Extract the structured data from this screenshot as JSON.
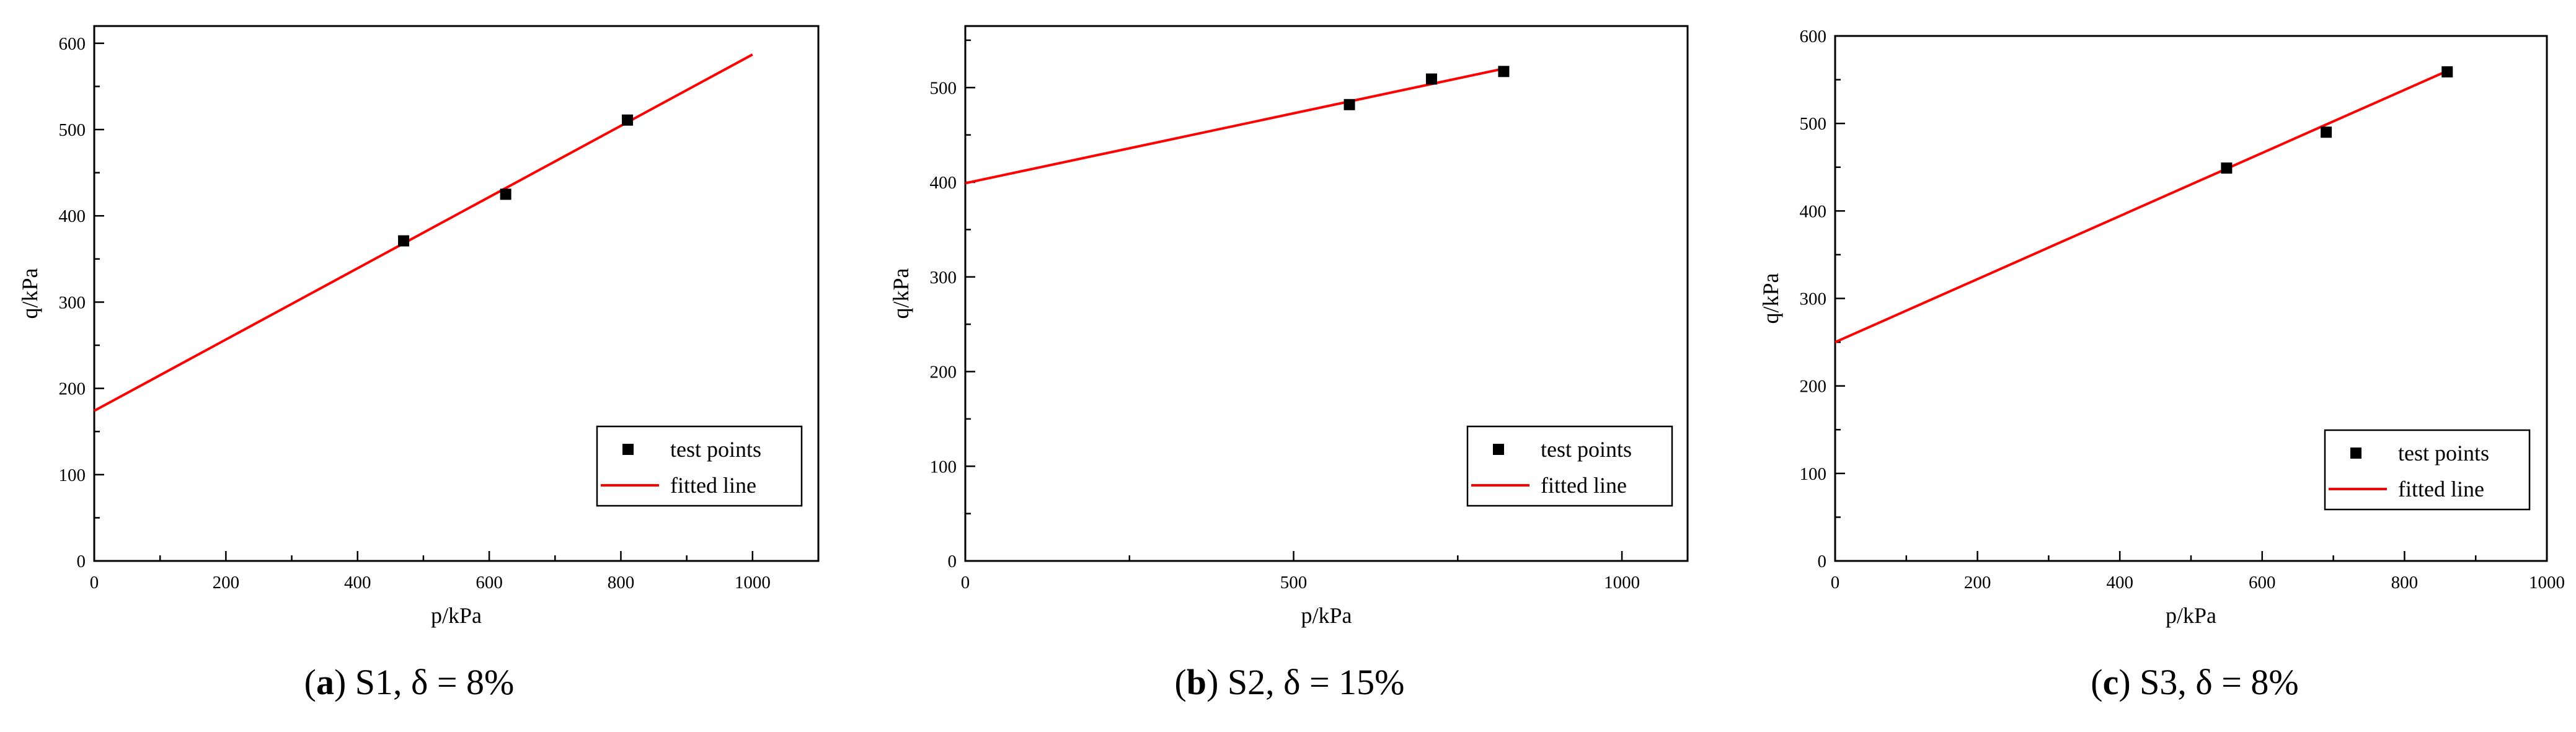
{
  "chart_data": [
    {
      "type": "scatter",
      "xlabel": "p/kPa",
      "ylabel": "q/kPa",
      "xlim": [
        0,
        1100
      ],
      "ylim": [
        0,
        620
      ],
      "xticks": [
        0,
        200,
        400,
        600,
        800,
        1000
      ],
      "yticks": [
        0,
        100,
        200,
        300,
        400,
        500,
        600
      ],
      "grid": false,
      "legend_position": "bottom-right",
      "series": [
        {
          "name": "test points",
          "kind": "scatter",
          "color": "#000000",
          "points": [
            [
              470,
              371
            ],
            [
              625,
              425
            ],
            [
              810,
              511
            ]
          ]
        },
        {
          "name": "fitted line",
          "kind": "line",
          "color": "#ff0000",
          "points": [
            [
              0,
              174
            ],
            [
              1000,
              587
            ]
          ]
        }
      ],
      "caption": {
        "letter": "a",
        "text": "S1, δ = 8%"
      }
    },
    {
      "type": "scatter",
      "xlabel": "p/kPa",
      "ylabel": "q/kPa",
      "xlim": [
        0,
        1100
      ],
      "ylim": [
        0,
        565
      ],
      "xticks": [
        0,
        500,
        1000
      ],
      "yticks": [
        0,
        100,
        200,
        300,
        400,
        500
      ],
      "grid": false,
      "legend_position": "bottom-right",
      "series": [
        {
          "name": "test points",
          "kind": "scatter",
          "color": "#000000",
          "points": [
            [
              585,
              482
            ],
            [
              710,
              509
            ],
            [
              820,
              517
            ]
          ]
        },
        {
          "name": "fitted line",
          "kind": "line",
          "color": "#ff0000",
          "points": [
            [
              0,
              399
            ],
            [
              820,
              520
            ]
          ]
        }
      ],
      "caption": {
        "letter": "b",
        "text": "S2, δ = 15%"
      }
    },
    {
      "type": "scatter",
      "xlabel": "p/kPa",
      "ylabel": "q/kPa",
      "xlim": [
        0,
        1000
      ],
      "ylim": [
        0,
        600
      ],
      "xticks": [
        0,
        200,
        400,
        600,
        800,
        1000
      ],
      "yticks": [
        0,
        100,
        200,
        300,
        400,
        500,
        600
      ],
      "grid": false,
      "legend_position": "bottom-right",
      "series": [
        {
          "name": "test points",
          "kind": "scatter",
          "color": "#000000",
          "points": [
            [
              550,
              449
            ],
            [
              690,
              490
            ],
            [
              860,
              559
            ]
          ]
        },
        {
          "name": "fitted line",
          "kind": "line",
          "color": "#ff0000",
          "points": [
            [
              0,
              250
            ],
            [
              860,
              560
            ]
          ]
        }
      ],
      "caption": {
        "letter": "c",
        "text": "S3, δ = 8%"
      }
    }
  ]
}
